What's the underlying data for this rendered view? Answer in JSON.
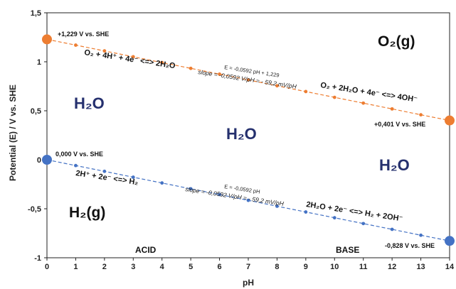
{
  "chart_data": {
    "type": "line",
    "xlabel": "pH",
    "ylabel": "Potential (E) / V vs. SHE",
    "xlim": [
      0,
      14
    ],
    "ylim": [
      -1,
      1.5
    ],
    "x_ticks": [
      "0",
      "1",
      "2",
      "3",
      "4",
      "5",
      "6",
      "7",
      "8",
      "9",
      "10",
      "11",
      "12",
      "13",
      "14"
    ],
    "y_ticks": [
      "1,5",
      "1",
      "0,5",
      "0",
      "-0,5",
      "-1"
    ],
    "grid": false,
    "series": [
      {
        "color": "#ed7d31",
        "x": [
          0,
          1,
          2,
          3,
          4,
          5,
          6,
          7,
          8,
          9,
          10,
          11,
          12,
          13,
          14
        ],
        "y": [
          1.229,
          1.17,
          1.111,
          1.051,
          0.992,
          0.933,
          0.874,
          0.815,
          0.755,
          0.696,
          0.637,
          0.578,
          0.519,
          0.459,
          0.401
        ]
      },
      {
        "color": "#4472c4",
        "x": [
          0,
          1,
          2,
          3,
          4,
          5,
          6,
          7,
          8,
          9,
          10,
          11,
          12,
          13,
          14
        ],
        "y": [
          0.0,
          -0.059,
          -0.118,
          -0.178,
          -0.237,
          -0.296,
          -0.355,
          -0.414,
          -0.474,
          -0.533,
          -0.592,
          -0.651,
          -0.71,
          -0.77,
          -0.828
        ]
      }
    ],
    "point_labels": {
      "o2_acid": "+1,229 V vs. SHE",
      "o2_base": "+0,401 V vs. SHE",
      "h2_acid": "0,000 V vs. SHE",
      "h2_base": "-0,828 V vs. SHE"
    },
    "annotations": {
      "o2_acid_eq": "O₂ + 4H⁺ + 4e⁻ <=> 2H₂O",
      "o2_fit": "E = -0,0592 pH + 1,229",
      "o2_slope": "slope = -0,0592 V/pH = - 59,2 mV/pH",
      "o2_base_eq": "O₂ + 2H₂O + 4e⁻ <=> 4OH⁻",
      "h2_acid_eq": "2H⁺ + 2e⁻ <=> H₂",
      "h2_fit": "E = -0,0592 pH",
      "h2_slope": "slope = -0,0592 V/pH = - 59,2 mV/pH",
      "h2_base_eq": "2H₂O + 2e⁻ <=> H₂ + 2OH⁻",
      "o2_gas": "O₂(g)",
      "h2_gas": "H₂(g)",
      "water_left": "H₂O",
      "water_center": "H₂O",
      "water_right": "H₂O",
      "acid": "ACID",
      "base": "BASE"
    }
  }
}
